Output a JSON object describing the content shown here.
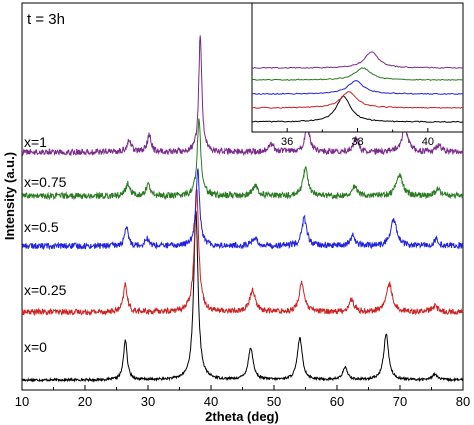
{
  "chart_data": [
    {
      "type": "line",
      "annotation": "t = 3h",
      "xlabel": "2theta (deg)",
      "ylabel": "Intensity (a.u.)",
      "xlim": [
        10,
        80
      ],
      "xticks": [
        10,
        20,
        30,
        40,
        50,
        60,
        70,
        80
      ],
      "y_ticks_shown": false,
      "grid": false,
      "legend": "labels placed at left of each curve",
      "series": [
        {
          "name": "x=0",
          "color": "#000000",
          "offset": 0,
          "baseline": 10,
          "noise": 1.2,
          "peaks": [
            [
              26.4,
              40,
              0.6
            ],
            [
              37.6,
              170,
              0.7
            ],
            [
              46.3,
              32,
              0.8
            ],
            [
              54.1,
              42,
              0.8
            ],
            [
              61.3,
              12,
              0.8
            ],
            [
              67.8,
              46,
              0.8
            ],
            [
              75.5,
              6,
              0.8
            ]
          ]
        },
        {
          "name": "x=0.25",
          "color": "#cc2222",
          "offset": 68,
          "baseline": 10,
          "noise": 2.8,
          "peaks": [
            [
              26.4,
              28,
              0.6
            ],
            [
              37.7,
              125,
              0.7
            ],
            [
              46.6,
              22,
              0.9
            ],
            [
              54.4,
              30,
              0.8
            ],
            [
              62.3,
              12,
              0.8
            ],
            [
              68.3,
              28,
              1.0
            ],
            [
              75.5,
              6,
              0.9
            ]
          ]
        },
        {
          "name": "x=0.5",
          "color": "#2222dd",
          "offset": 134,
          "baseline": 10,
          "noise": 3.0,
          "peaks": [
            [
              26.6,
              18,
              0.6
            ],
            [
              29.8,
              8,
              0.6
            ],
            [
              37.9,
              78,
              0.6
            ],
            [
              46.9,
              8,
              0.9
            ],
            [
              54.8,
              28,
              0.8
            ],
            [
              62.5,
              10,
              0.8
            ],
            [
              69.0,
              26,
              1.0
            ],
            [
              75.8,
              6,
              0.9
            ]
          ]
        },
        {
          "name": "x=0.75",
          "color": "#2a7a22",
          "offset": 184,
          "baseline": 10,
          "noise": 3.0,
          "peaks": [
            [
              26.8,
              12,
              0.7
            ],
            [
              30.0,
              12,
              0.6
            ],
            [
              38.1,
              78,
              0.6
            ],
            [
              47.0,
              10,
              0.9
            ],
            [
              55.0,
              28,
              0.8
            ],
            [
              62.8,
              10,
              0.8
            ],
            [
              69.9,
              22,
              1.0
            ],
            [
              76.0,
              6,
              0.9
            ]
          ]
        },
        {
          "name": "x=1",
          "color": "#7a2a8a",
          "offset": 228,
          "baseline": 10,
          "noise": 3.0,
          "peaks": [
            [
              27.0,
              12,
              0.7
            ],
            [
              30.2,
              18,
              0.6
            ],
            [
              38.3,
              118,
              0.5
            ],
            [
              49.5,
              8,
              0.9
            ],
            [
              55.3,
              24,
              0.8
            ],
            [
              63.0,
              14,
              0.8
            ],
            [
              70.8,
              24,
              1.0
            ],
            [
              76.2,
              6,
              0.9
            ]
          ]
        }
      ]
    },
    {
      "type": "line",
      "title": "",
      "xlim": [
        35,
        41
      ],
      "xticks": [
        36,
        38,
        40
      ],
      "y_ticks_shown": false,
      "series": [
        {
          "name": "x=0",
          "color": "#000000",
          "offset": 0,
          "peak": 37.6,
          "height": 26,
          "width": 0.35
        },
        {
          "name": "x=0.25",
          "color": "#cc2222",
          "offset": 14,
          "peak": 37.75,
          "height": 16,
          "width": 0.4
        },
        {
          "name": "x=0.5",
          "color": "#2222dd",
          "offset": 28,
          "peak": 37.95,
          "height": 13,
          "width": 0.4
        },
        {
          "name": "x=0.75",
          "color": "#2a7a22",
          "offset": 42,
          "peak": 38.15,
          "height": 12,
          "width": 0.4
        },
        {
          "name": "x=1",
          "color": "#7a2a8a",
          "offset": 54,
          "peak": 38.4,
          "height": 16,
          "width": 0.35
        }
      ]
    }
  ]
}
